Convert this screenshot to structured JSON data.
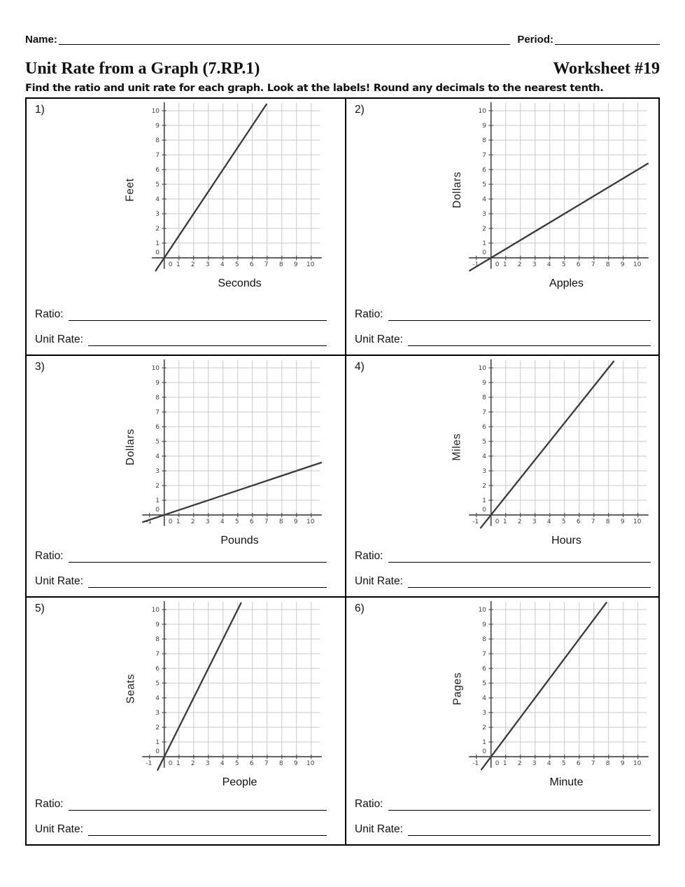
{
  "page": {
    "name_label": "Name:",
    "period_label": "Period:",
    "title": "Unit Rate from a Graph (7.RP.1)",
    "worksheet_number": "Worksheet #19",
    "instructions": "Find the ratio and unit rate for each graph. Look at the labels! Round any decimals to the nearest tenth."
  },
  "labels": {
    "ratio": "Ratio:",
    "unit_rate": "Unit Rate:"
  },
  "colors": {
    "grid": "#c9c9c9",
    "axis": "#4d4d4d",
    "line": "#3a3a3a",
    "tick_text": "#3f3f3f"
  },
  "problems": [
    {
      "number": "1)"
    },
    {
      "number": "2)"
    },
    {
      "number": "3)"
    },
    {
      "number": "4)"
    },
    {
      "number": "5)"
    },
    {
      "number": "6)"
    }
  ],
  "chart_data": [
    {
      "problem": 1,
      "type": "line",
      "xlabel": "Seconds",
      "ylabel": "Feet",
      "slope": 1.5,
      "passes_through_origin": true,
      "sample_points": [
        [
          2,
          3
        ],
        [
          4,
          6
        ]
      ],
      "xlim": [
        -0.85,
        10.6
      ],
      "ylim": [
        -1,
        10.5
      ],
      "x_ticks": [
        0,
        1,
        2,
        3,
        4,
        5,
        6,
        7,
        8,
        9,
        10
      ],
      "y_ticks": [
        0,
        1,
        2,
        3,
        4,
        5,
        6,
        7,
        8,
        9,
        10
      ],
      "segment": [
        [
          -0.58,
          -0.87
        ],
        [
          6.95,
          10.43
        ]
      ]
    },
    {
      "problem": 2,
      "type": "line",
      "xlabel": "Apples",
      "ylabel": "Dollars",
      "slope": 0.6,
      "passes_through_origin": true,
      "sample_points": [
        [
          5,
          3
        ],
        [
          10,
          6
        ]
      ],
      "xlim": [
        -1.5,
        10.6
      ],
      "ylim": [
        -1,
        10.5
      ],
      "x_ticks": [
        -1,
        0,
        1,
        2,
        3,
        4,
        5,
        6,
        7,
        8,
        9,
        10
      ],
      "y_ticks": [
        0,
        1,
        2,
        3,
        4,
        5,
        6,
        7,
        8,
        9,
        10
      ],
      "segment": [
        [
          -1.45,
          -0.87
        ],
        [
          10.68,
          6.41
        ]
      ]
    },
    {
      "problem": 3,
      "type": "line",
      "xlabel": "Pounds",
      "ylabel": "Dollars",
      "slope": 0.333,
      "passes_through_origin": true,
      "sample_points": [
        [
          3,
          1
        ],
        [
          9,
          3
        ]
      ],
      "xlim": [
        -1.5,
        10.6
      ],
      "ylim": [
        -1,
        10.5
      ],
      "x_ticks": [
        -1,
        0,
        1,
        2,
        3,
        4,
        5,
        6,
        7,
        8,
        9,
        10
      ],
      "y_ticks": [
        0,
        1,
        2,
        3,
        4,
        5,
        6,
        7,
        8,
        9,
        10
      ],
      "segment": [
        [
          -1.45,
          -0.48
        ],
        [
          10.68,
          3.56
        ]
      ]
    },
    {
      "problem": 4,
      "type": "line",
      "xlabel": "Hours",
      "ylabel": "Miles",
      "slope": 1.25,
      "passes_through_origin": true,
      "sample_points": [
        [
          4,
          5
        ],
        [
          8,
          10
        ]
      ],
      "xlim": [
        -1.5,
        10.6
      ],
      "ylim": [
        -1,
        10.5
      ],
      "x_ticks": [
        -1,
        0,
        1,
        2,
        3,
        4,
        5,
        6,
        7,
        8,
        9,
        10
      ],
      "y_ticks": [
        0,
        1,
        2,
        3,
        4,
        5,
        6,
        7,
        8,
        9,
        10
      ],
      "segment": [
        [
          -0.7,
          -0.87
        ],
        [
          8.35,
          10.44
        ]
      ]
    },
    {
      "problem": 5,
      "type": "line",
      "xlabel": "People",
      "ylabel": "Seats",
      "slope": 2,
      "passes_through_origin": true,
      "sample_points": [
        [
          3,
          6
        ],
        [
          5,
          10
        ]
      ],
      "xlim": [
        -1.5,
        10.6
      ],
      "ylim": [
        -1,
        10.5
      ],
      "x_ticks": [
        -1,
        0,
        1,
        2,
        3,
        4,
        5,
        6,
        7,
        8,
        9,
        10
      ],
      "y_ticks": [
        0,
        1,
        2,
        3,
        4,
        5,
        6,
        7,
        8,
        9,
        10
      ],
      "segment": [
        [
          -0.45,
          -0.9
        ],
        [
          5.22,
          10.44
        ]
      ]
    },
    {
      "problem": 6,
      "type": "line",
      "xlabel": "Minute",
      "ylabel": "Pages",
      "slope": 1.333,
      "passes_through_origin": true,
      "sample_points": [
        [
          3,
          4
        ],
        [
          6,
          8
        ]
      ],
      "xlim": [
        -1.5,
        10.6
      ],
      "ylim": [
        -1,
        10.5
      ],
      "x_ticks": [
        -1,
        0,
        1,
        2,
        3,
        4,
        5,
        6,
        7,
        8,
        9,
        10
      ],
      "y_ticks": [
        0,
        1,
        2,
        3,
        4,
        5,
        6,
        7,
        8,
        9,
        10
      ],
      "segment": [
        [
          -0.65,
          -0.87
        ],
        [
          7.85,
          10.47
        ]
      ]
    }
  ]
}
